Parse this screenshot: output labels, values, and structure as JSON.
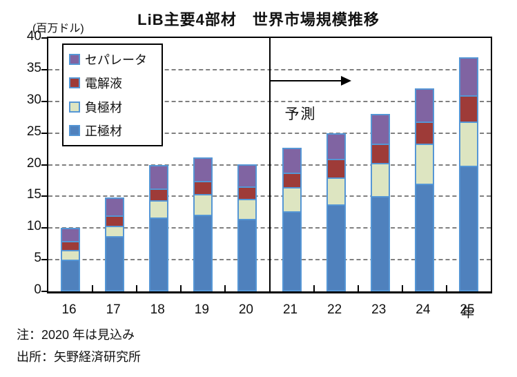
{
  "chart_data": {
    "type": "bar",
    "stacked": true,
    "title": "LiB主要4部材　世界市場規模推移",
    "y_unit_label": "(百万ドル)",
    "x_unit_label": "年",
    "categories": [
      "16",
      "17",
      "18",
      "19",
      "20",
      "21",
      "22",
      "23",
      "24",
      "25"
    ],
    "series": [
      {
        "name": "正極材",
        "color": "#4F81BD",
        "values": [
          5.0,
          8.7,
          11.7,
          12.1,
          11.4,
          12.6,
          13.7,
          15.0,
          17.0,
          19.8
        ]
      },
      {
        "name": "負極材",
        "color": "#DDE5C1",
        "values": [
          1.5,
          1.7,
          2.7,
          3.3,
          3.2,
          3.9,
          4.3,
          5.3,
          6.3,
          7.0
        ]
      },
      {
        "name": "電解液",
        "color": "#9E3B38",
        "values": [
          1.5,
          1.6,
          1.8,
          2.0,
          2.0,
          2.3,
          2.9,
          3.0,
          3.5,
          4.2
        ]
      },
      {
        "name": "セパレータ",
        "color": "#8064A2",
        "values": [
          2.0,
          2.8,
          3.8,
          3.8,
          3.5,
          3.9,
          4.1,
          4.7,
          5.2,
          6.0
        ]
      }
    ],
    "totals": [
      10.0,
      14.8,
      20.0,
      21.2,
      20.1,
      22.7,
      25.0,
      28.0,
      32.0,
      37.0
    ],
    "bar_border_color": "#5596D5",
    "grid_color": "#7F7F7F",
    "ylim": [
      0,
      40
    ],
    "ytick_step": 5,
    "grid": true,
    "legend_position": "upper-left",
    "legend_order_top_to_bottom": [
      "セパレータ",
      "電解液",
      "負極材",
      "正極材"
    ],
    "forecast": {
      "label": "予測",
      "divider_after_category": "20"
    }
  },
  "notes": {
    "note": "注：2020 年は見込み",
    "source": "出所：矢野経済研究所"
  }
}
